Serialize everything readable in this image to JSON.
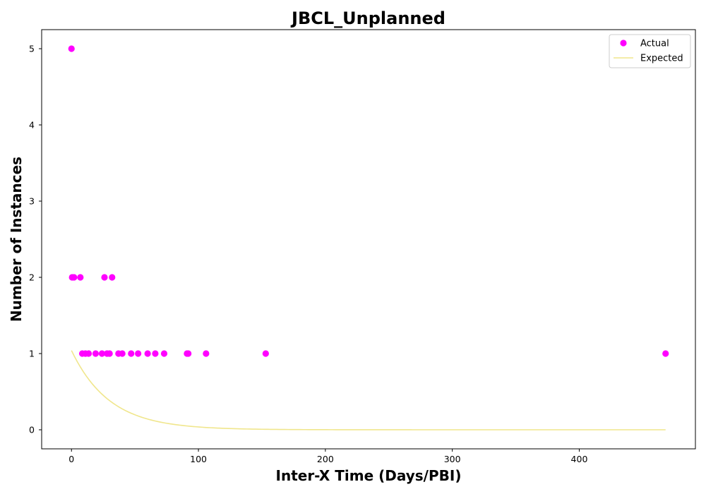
{
  "chart_data": {
    "type": "scatter",
    "title": "JBCL_Unplanned",
    "xlabel": "Inter-X Time (Days/PBI)",
    "ylabel": "Number of Instances",
    "xlim": [
      -23.5,
      491.5
    ],
    "ylim": [
      -0.25,
      5.25
    ],
    "xticks": [
      0,
      100,
      200,
      300,
      400
    ],
    "yticks": [
      0,
      1,
      2,
      3,
      4,
      5
    ],
    "grid": false,
    "legend_position": "top-right",
    "series": [
      {
        "name": "Actual",
        "kind": "scatter",
        "color": "#ff00ff",
        "points": [
          [
            0,
            5
          ],
          [
            0.5,
            2
          ],
          [
            2,
            2
          ],
          [
            7,
            2
          ],
          [
            26,
            2
          ],
          [
            32,
            2
          ],
          [
            8.5,
            1
          ],
          [
            11,
            1
          ],
          [
            13.5,
            1
          ],
          [
            19,
            1
          ],
          [
            24,
            1
          ],
          [
            28,
            1
          ],
          [
            30,
            1
          ],
          [
            37,
            1
          ],
          [
            40,
            1
          ],
          [
            47,
            1
          ],
          [
            52.5,
            1
          ],
          [
            60,
            1
          ],
          [
            66,
            1
          ],
          [
            73,
            1
          ],
          [
            91,
            1
          ],
          [
            92,
            1
          ],
          [
            106,
            1
          ],
          [
            153,
            1
          ],
          [
            468,
            1
          ]
        ]
      },
      {
        "name": "Expected",
        "kind": "line",
        "color": "#f0e68c",
        "x_range": [
          0,
          468
        ],
        "amplitude": 1.04,
        "decay_scale": 30
      }
    ]
  }
}
